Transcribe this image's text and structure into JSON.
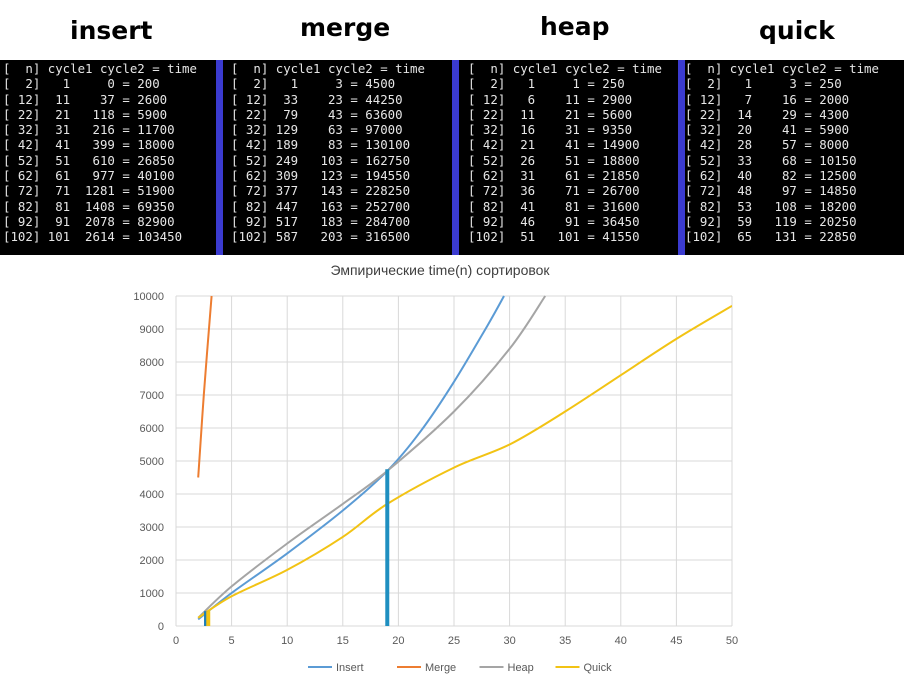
{
  "headers": {
    "insert": "insert",
    "merge": "merge",
    "heap": "heap",
    "quick": "quick"
  },
  "consoles": {
    "insert": {
      "header": "[  n] cycle1 cycle2 = time",
      "rows": [
        "[  2]   1     0 = 200",
        "[ 12]  11    37 = 2600",
        "[ 22]  21   118 = 5900",
        "[ 32]  31   216 = 11700",
        "[ 42]  41   399 = 18000",
        "[ 52]  51   610 = 26850",
        "[ 62]  61   977 = 40100",
        "[ 72]  71  1281 = 51900",
        "[ 82]  81  1408 = 69350",
        "[ 92]  91  2078 = 82900",
        "[102] 101  2614 = 103450"
      ]
    },
    "merge": {
      "header": "[  n] cycle1 cycle2 = time",
      "rows": [
        "[  2]   1     3 = 4500",
        "[ 12]  33    23 = 44250",
        "[ 22]  79    43 = 63600",
        "[ 32] 129    63 = 97000",
        "[ 42] 189    83 = 130100",
        "[ 52] 249   103 = 162750",
        "[ 62] 309   123 = 194550",
        "[ 72] 377   143 = 228250",
        "[ 82] 447   163 = 252700",
        "[ 92] 517   183 = 284700",
        "[102] 587   203 = 316500"
      ]
    },
    "heap": {
      "header": "[  n] cycle1 cycle2 = time",
      "rows": [
        "[  2]   1     1 = 250",
        "[ 12]   6    11 = 2900",
        "[ 22]  11    21 = 5600",
        "[ 32]  16    31 = 9350",
        "[ 42]  21    41 = 14900",
        "[ 52]  26    51 = 18800",
        "[ 62]  31    61 = 21850",
        "[ 72]  36    71 = 26700",
        "[ 82]  41    81 = 31600",
        "[ 92]  46    91 = 36450",
        "[102]  51   101 = 41550"
      ]
    },
    "quick": {
      "header": "[  n] cycle1 cycle2 = time",
      "rows": [
        "[  2]   1     3 = 250",
        "[ 12]   7    16 = 2000",
        "[ 22]  14    29 = 4300",
        "[ 32]  20    41 = 5900",
        "[ 42]  28    57 = 8000",
        "[ 52]  33    68 = 10150",
        "[ 62]  40    82 = 12500",
        "[ 72]  48    97 = 14850",
        "[ 82]  53   108 = 18200",
        "[ 92]  59   119 = 20250",
        "[102]  65   131 = 22850"
      ]
    }
  },
  "chart_data": {
    "type": "line",
    "title": "Эмпирические time(n) сортировок",
    "xlabel": "",
    "ylabel": "",
    "xlim": [
      0,
      50
    ],
    "ylim": [
      0,
      10000
    ],
    "xticks": [
      0,
      5,
      10,
      15,
      20,
      25,
      30,
      35,
      40,
      45,
      50
    ],
    "yticks": [
      0,
      1000,
      2000,
      3000,
      4000,
      5000,
      6000,
      7000,
      8000,
      9000,
      10000
    ],
    "grid": true,
    "legend_position": "bottom",
    "series": [
      {
        "name": "Insert",
        "color": "#5b9bd5",
        "x": [
          2,
          5,
          10,
          15,
          19,
          22,
          25,
          28,
          29.5
        ],
        "y": [
          200,
          1000,
          2200,
          3500,
          4700,
          5900,
          7400,
          9100,
          10000
        ]
      },
      {
        "name": "Merge",
        "color": "#ed7d31",
        "x": [
          2,
          2.5,
          3.2
        ],
        "y": [
          4500,
          7000,
          10000
        ]
      },
      {
        "name": "Heap",
        "color": "#a5a5a5",
        "x": [
          2,
          5,
          10,
          15,
          19,
          25,
          30,
          33.2
        ],
        "y": [
          250,
          1200,
          2500,
          3700,
          4700,
          6500,
          8400,
          10000
        ]
      },
      {
        "name": "Quick",
        "color": "#f2c314",
        "x": [
          2,
          5,
          10,
          15,
          19,
          25,
          30,
          35,
          40,
          45,
          50
        ],
        "y": [
          250,
          900,
          1700,
          2700,
          3700,
          4800,
          5500,
          6500,
          7600,
          8700,
          9700
        ]
      }
    ],
    "verticals": [
      {
        "x": 2.7,
        "y": 450,
        "color": "#1e7fb8"
      },
      {
        "x": 2.9,
        "y": 450,
        "color": "#f2c314"
      },
      {
        "x": 19,
        "y": 4750,
        "color": "#1f8fc0"
      }
    ]
  }
}
